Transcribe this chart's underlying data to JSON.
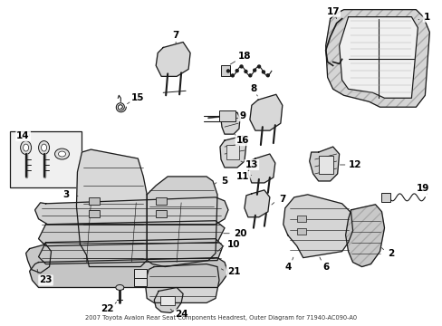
{
  "background_color": "#ffffff",
  "line_color": "#1a1a1a",
  "figsize": [
    4.89,
    3.6
  ],
  "dpi": 100,
  "label_color": "#000000",
  "label_fontsize": 7.5,
  "title": "2007 Toyota Avalon Rear Seat Components Headrest, Outer Diagram for 71940-AC090-A0"
}
